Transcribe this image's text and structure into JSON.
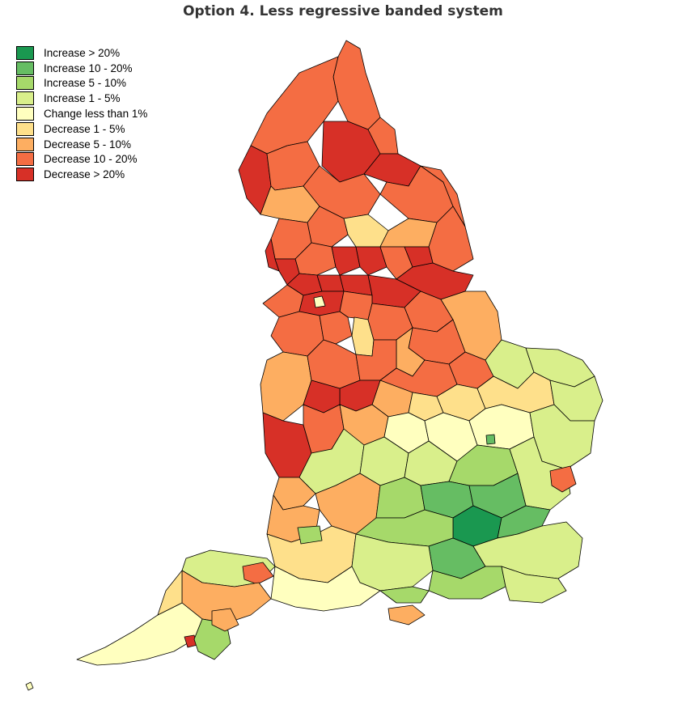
{
  "title": "Option 4. Less regressive banded system",
  "legend": {
    "items": [
      {
        "label": "Increase > 20%",
        "color": "#1a9850"
      },
      {
        "label": "Increase 10 - 20%",
        "color": "#66bd63"
      },
      {
        "label": "Increase 5 - 10%",
        "color": "#a6d96a"
      },
      {
        "label": "Increase 1 - 5%",
        "color": "#d9ef8b"
      },
      {
        "label": "Change less than 1%",
        "color": "#ffffbf"
      },
      {
        "label": "Decrease 1 - 5%",
        "color": "#fee08b"
      },
      {
        "label": "Decrease 5 - 10%",
        "color": "#fdae61"
      },
      {
        "label": "Decrease 10 - 20%",
        "color": "#f46d43"
      },
      {
        "label": "Decrease > 20%",
        "color": "#d73027"
      }
    ]
  }
}
